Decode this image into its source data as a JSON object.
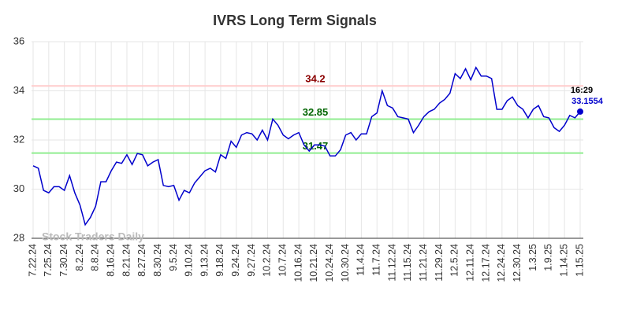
{
  "chart_data": {
    "type": "line",
    "title": "IVRS Long Term Signals",
    "watermark": "Stock Traders Daily",
    "color": "#0000cc",
    "ylim": [
      28,
      36
    ],
    "yticks": [
      28,
      30,
      32,
      34,
      36
    ],
    "grid": true,
    "hlines": [
      {
        "value": 34.2,
        "color": "#ffcccc",
        "label_color": "#8b0000"
      },
      {
        "value": 32.85,
        "color": "#90ee90",
        "label_color": "#006400"
      },
      {
        "value": 31.47,
        "color": "#90ee90",
        "label_color": "#006400"
      }
    ],
    "last_point": {
      "time": "16:29",
      "time_color": "#000000",
      "value_color": "#0000cc"
    },
    "categories": [
      "7.22.24",
      null,
      null,
      "7.25.24",
      null,
      null,
      "7.30.24",
      null,
      null,
      "8.2.24",
      null,
      null,
      "8.8.24",
      null,
      null,
      "8.16.24",
      null,
      null,
      "8.21.24",
      null,
      null,
      "8.27.24",
      null,
      null,
      "8.30.24",
      null,
      null,
      "9.5.24",
      null,
      null,
      "9.10.24",
      null,
      null,
      "9.13.24",
      null,
      null,
      "9.18.24",
      null,
      null,
      "9.24.24",
      null,
      null,
      "9.27.24",
      null,
      null,
      "10.2.24",
      null,
      null,
      "10.7.24",
      null,
      null,
      "10.16.24",
      null,
      null,
      "10.21.24",
      null,
      null,
      "10.24.24",
      null,
      null,
      "10.30.24",
      null,
      null,
      "11.4.24",
      null,
      null,
      "11.7.24",
      null,
      null,
      "11.12.24",
      null,
      null,
      "11.15.24",
      null,
      null,
      "11.21.24",
      null,
      null,
      "11.29.24",
      null,
      null,
      "12.5.24",
      null,
      null,
      "12.11.24",
      null,
      null,
      "12.17.24",
      null,
      null,
      "12.24.24",
      null,
      null,
      "12.30.24",
      null,
      null,
      "1.3.25",
      null,
      null,
      "1.9.25",
      null,
      null,
      "1.14.25",
      null,
      null,
      "1.15.25"
    ],
    "values": [
      30.95,
      30.85,
      29.95,
      29.85,
      30.1,
      30.1,
      29.95,
      30.55,
      29.85,
      29.35,
      28.55,
      28.85,
      29.3,
      30.3,
      30.3,
      30.75,
      31.1,
      31.05,
      31.4,
      31.0,
      31.45,
      31.4,
      30.95,
      31.1,
      31.2,
      30.15,
      30.1,
      30.15,
      29.55,
      29.95,
      29.85,
      30.25,
      30.5,
      30.75,
      30.85,
      30.7,
      31.4,
      31.25,
      31.95,
      31.7,
      32.2,
      32.3,
      32.25,
      32.0,
      32.4,
      32.0,
      32.85,
      32.6,
      32.2,
      32.05,
      32.2,
      32.3,
      31.8,
      31.55,
      31.8,
      31.8,
      31.75,
      31.35,
      31.35,
      31.6,
      32.2,
      32.3,
      32.0,
      32.25,
      32.25,
      32.95,
      33.1,
      34.0,
      33.4,
      33.3,
      32.95,
      32.9,
      32.85,
      32.3,
      32.6,
      32.95,
      33.15,
      33.25,
      33.5,
      33.65,
      33.9,
      34.7,
      34.5,
      34.9,
      34.45,
      34.95,
      34.6,
      34.6,
      34.5,
      33.25,
      33.25,
      33.6,
      33.75,
      33.4,
      33.25,
      32.9,
      33.25,
      33.4,
      32.95,
      32.9,
      32.5,
      32.35,
      32.6,
      33.0,
      32.9,
      33.1554
    ]
  }
}
